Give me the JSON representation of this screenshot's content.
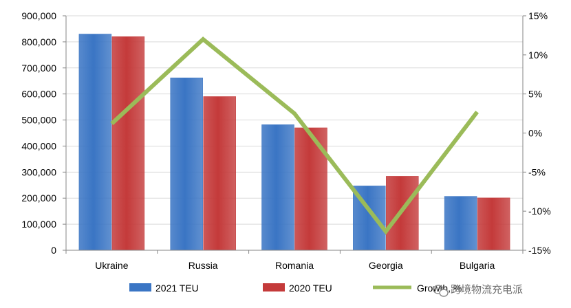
{
  "chart_data": {
    "type": "bar",
    "title": "",
    "xlabel": "",
    "ylabel": "",
    "categories": [
      "Ukraine",
      "Russia",
      "Romania",
      "Georgia",
      "Bulgaria"
    ],
    "series": [
      {
        "name": "2021 TEU",
        "type": "bar",
        "axis": "left",
        "color": "#3a75c4",
        "values": [
          830000,
          662000,
          482000,
          247000,
          207000
        ]
      },
      {
        "name": "2020 TEU",
        "type": "bar",
        "axis": "left",
        "color": "#c43a3a",
        "values": [
          820000,
          590000,
          470000,
          284000,
          201000
        ]
      },
      {
        "name": "Growth, %",
        "type": "line",
        "axis": "right",
        "color": "#9bbb59",
        "values": [
          1.2,
          12.0,
          2.5,
          -12.6,
          2.7
        ]
      }
    ],
    "y_left": {
      "min": 0,
      "max": 900000,
      "ticks": [
        "0",
        "100,000",
        "200,000",
        "300,000",
        "400,000",
        "500,000",
        "600,000",
        "700,000",
        "800,000",
        "900,000"
      ]
    },
    "y_right": {
      "min": -15,
      "max": 15,
      "ticks": [
        "-15%",
        "-10%",
        "-5%",
        "0%",
        "5%",
        "10%",
        "15%"
      ]
    },
    "grid": true,
    "legend_position": "bottom"
  },
  "watermark": {
    "text": "跨境物流充电派",
    "icon": "wechat-icon"
  }
}
